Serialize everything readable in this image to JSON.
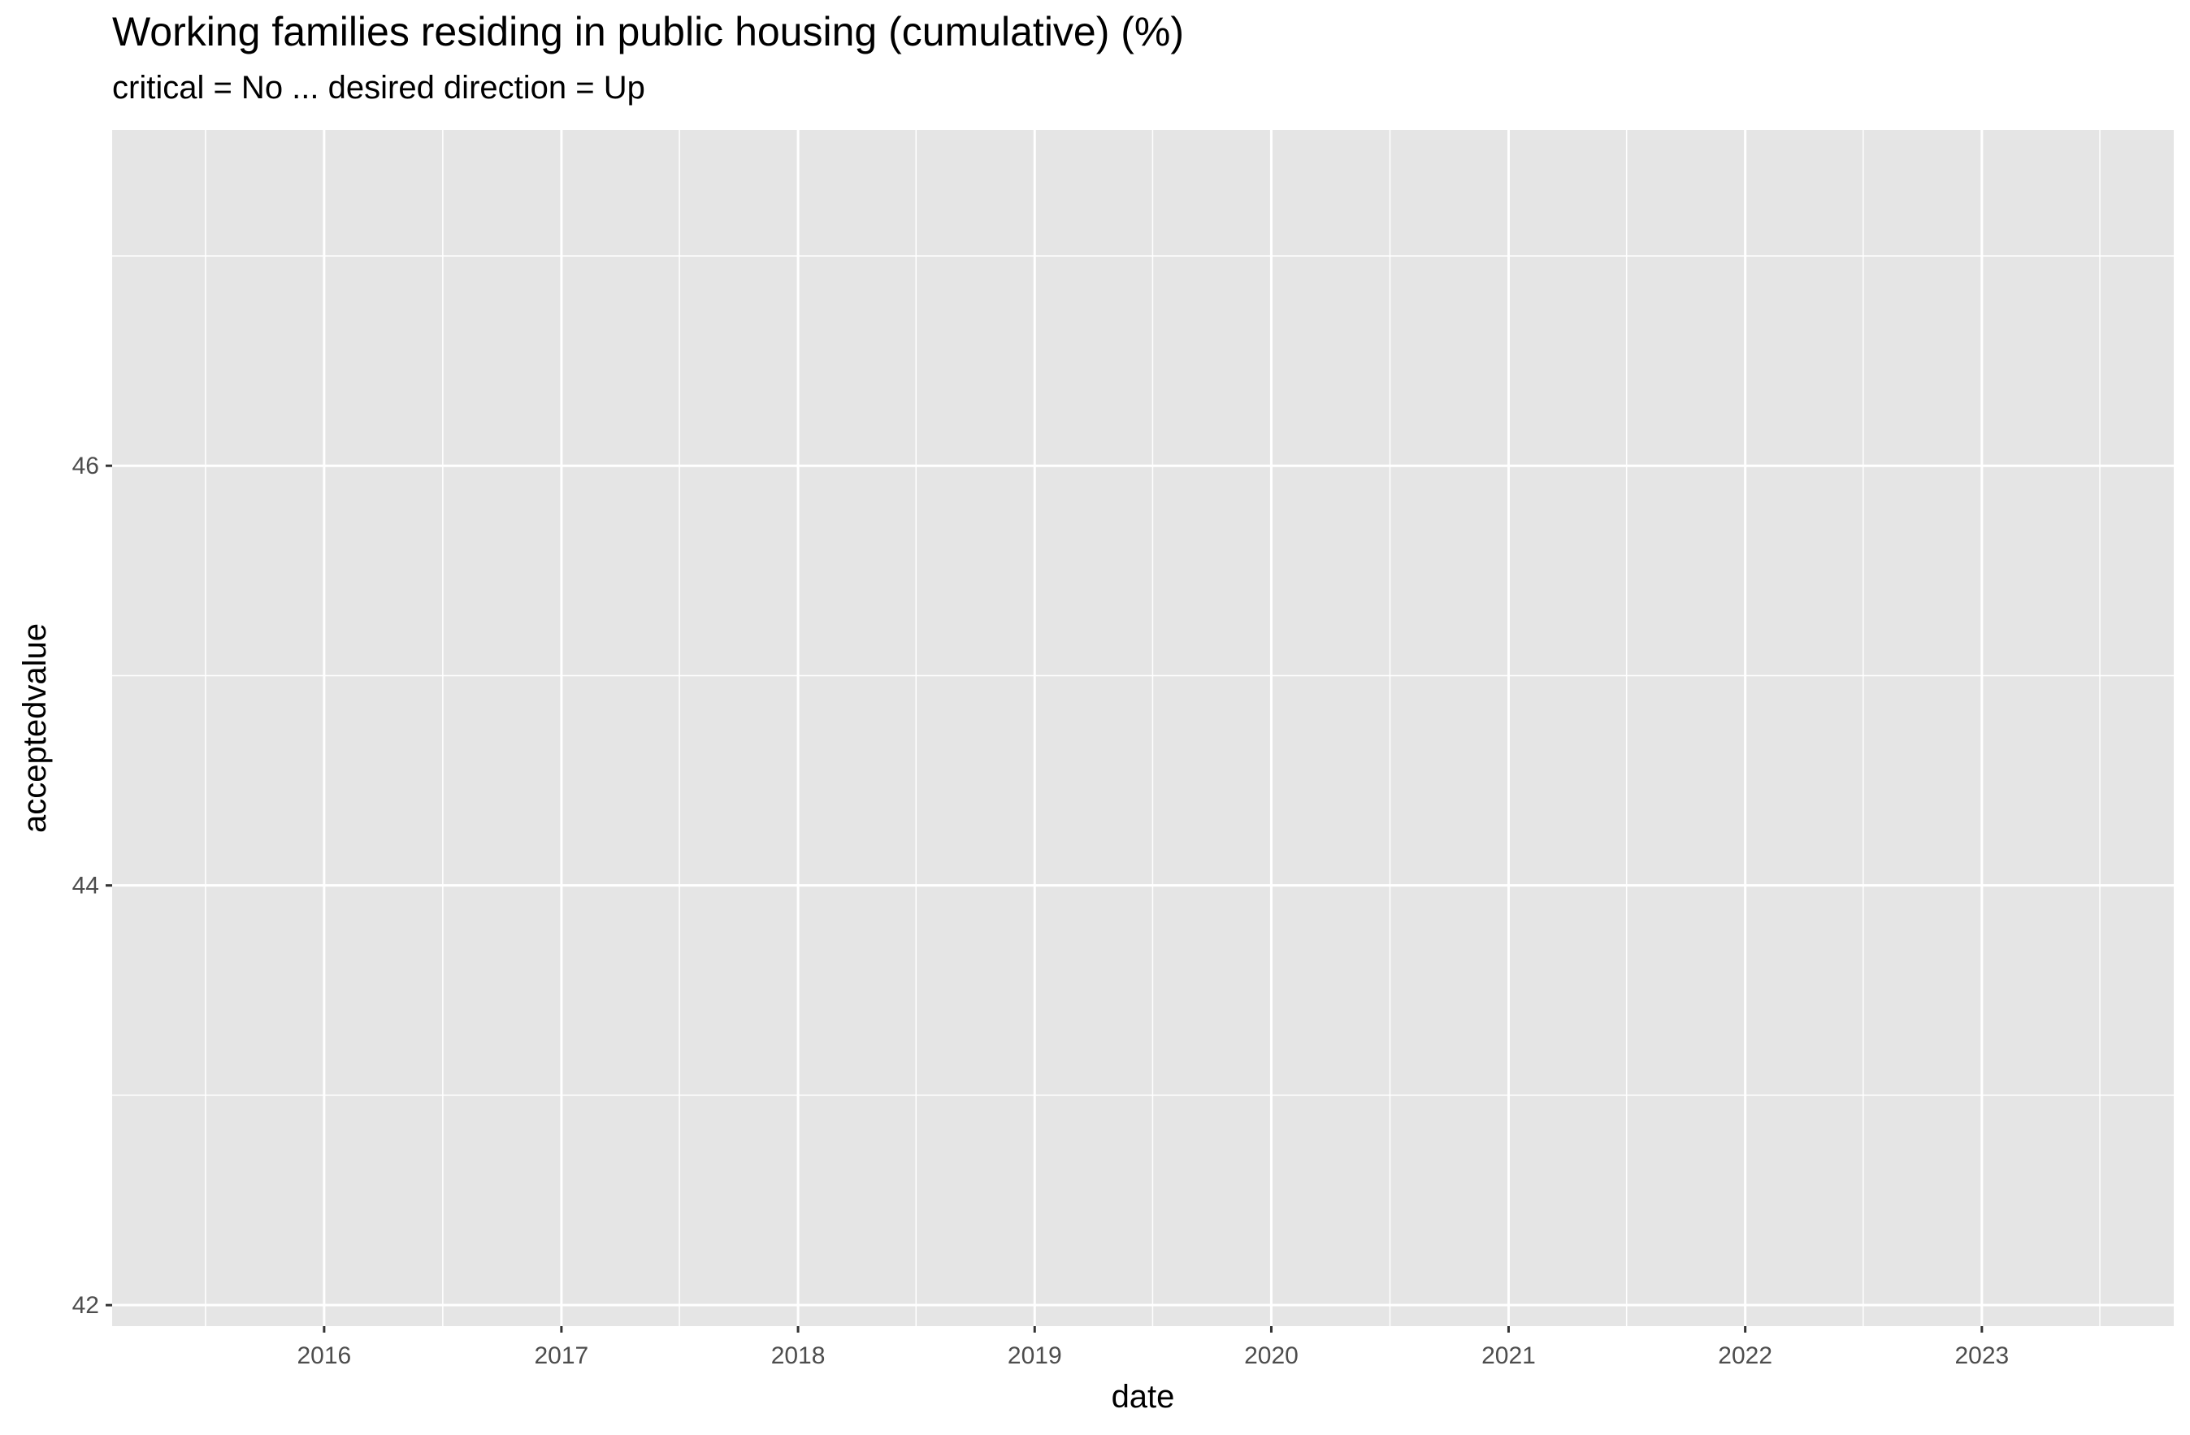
{
  "chart_data": {
    "type": "line",
    "title": "Working families residing in public housing (cumulative) (%)",
    "subtitle": "critical = No ... desired direction = Up",
    "xlabel": "date",
    "ylabel": "acceptedvalue",
    "x_ticks": [
      "2016",
      "2017",
      "2018",
      "2019",
      "2020",
      "2021",
      "2022",
      "2023"
    ],
    "y_ticks": [
      "42",
      "44",
      "46"
    ],
    "xlim": [
      "2015-02-08",
      "2023-10-24"
    ],
    "ylim": [
      41.9,
      47.6
    ],
    "series": [],
    "grid": true,
    "legend": "none",
    "colors": {
      "panel": "#e5e5e5",
      "grid": "#ffffff",
      "tick_text": "#4d4d4d",
      "tick_mark": "#333333"
    }
  }
}
